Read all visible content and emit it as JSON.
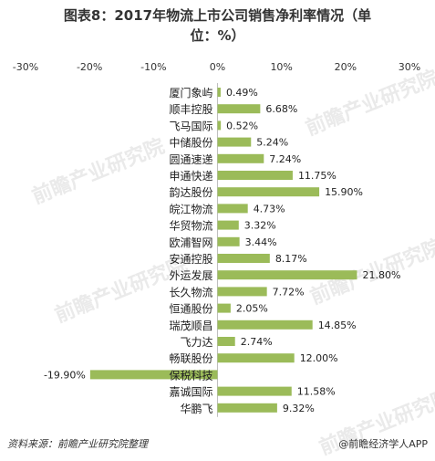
{
  "title_line1": "图表8：2017年物流上市公司销售净利率情况（单",
  "title_line2": "位：%）",
  "source_text": "资料来源：前瞻产业研究院整理",
  "brand_text": "@前瞻经济学人APP",
  "watermark_text": "前瞻产业研究院",
  "chart_data": {
    "type": "bar",
    "orientation": "horizontal",
    "title": "图表8：2017年物流上市公司销售净利率情况（单位：%）",
    "xlim": [
      -30,
      30
    ],
    "xticks": [
      "-30%",
      "-20%",
      "-10%",
      "0%",
      "10%",
      "20%",
      "30%"
    ],
    "xtick_values": [
      -30,
      -20,
      -10,
      0,
      10,
      20,
      30
    ],
    "grid": false,
    "bar_color": "#9bbb59",
    "categories": [
      "厦门象屿",
      "顺丰控股",
      "飞马国际",
      "中储股份",
      "圆通速递",
      "申通快递",
      "韵达股份",
      "皖江物流",
      "华贸物流",
      "欧浦智网",
      "安通控股",
      "外运发展",
      "长久物流",
      "恒通股份",
      "瑞茂顺昌",
      "飞力达",
      "畅联股份",
      "保税科技",
      "嘉诚国际",
      "华鹏飞"
    ],
    "values": [
      0.49,
      6.68,
      0.52,
      5.24,
      7.24,
      11.75,
      15.9,
      4.73,
      3.32,
      3.44,
      8.17,
      21.8,
      7.72,
      2.05,
      14.85,
      2.74,
      12.0,
      -19.9,
      11.58,
      9.32
    ],
    "value_labels": [
      "0.49%",
      "6.68%",
      "0.52%",
      "5.24%",
      "7.24%",
      "11.75%",
      "15.90%",
      "4.73%",
      "3.32%",
      "3.44%",
      "8.17%",
      "21.80%",
      "7.72%",
      "2.05%",
      "14.85%",
      "2.74%",
      "12.00%",
      "-19.90%",
      "11.58%",
      "9.32%"
    ]
  }
}
